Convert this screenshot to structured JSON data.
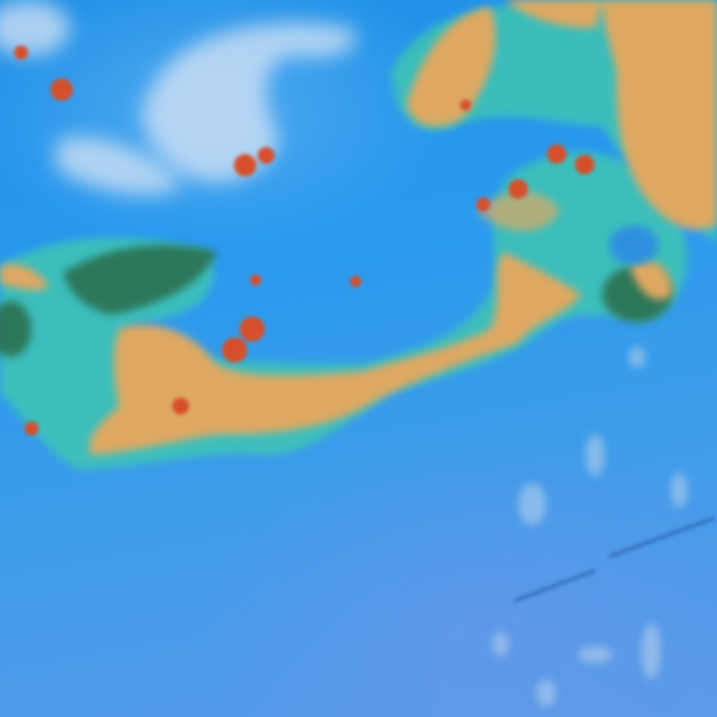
{
  "image": {
    "type": "false-color satellite cloud imagery",
    "colors": {
      "ocean": "#2a95e8",
      "high_cloud": "#e0a860",
      "convective_core": "#d0402a",
      "cloud_edge": "#3fd0b0",
      "thin_cloud": "#c8dcf0",
      "dark_cloud": "#2a6a50"
    }
  }
}
